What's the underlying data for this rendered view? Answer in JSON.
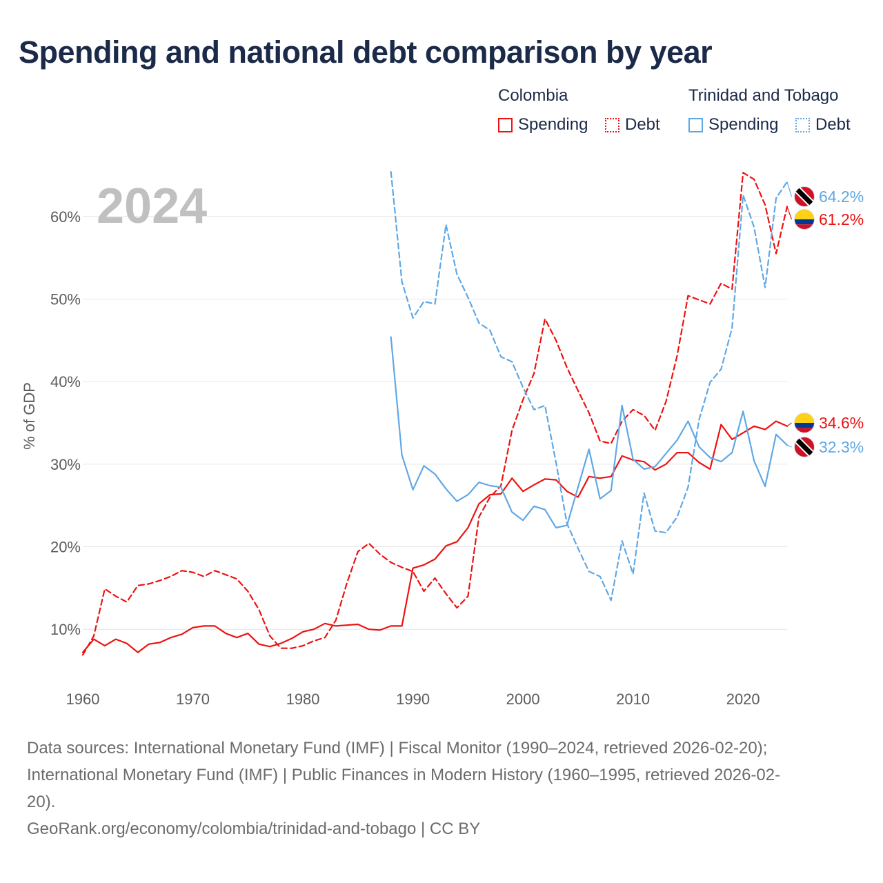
{
  "title": "Spending and national debt comparison by year",
  "colors": {
    "colombia": "#ee1111",
    "trinidad": "#5fa8e6",
    "grid": "#e6e6e6",
    "year_watermark": "#c0c0c0"
  },
  "legend": {
    "groups": [
      {
        "country": "Colombia",
        "spending_label": "Spending",
        "debt_label": "Debt"
      },
      {
        "country": "Trinidad and Tobago",
        "spending_label": "Spending",
        "debt_label": "Debt"
      }
    ]
  },
  "chart_data": {
    "type": "line",
    "current_year": "2024",
    "ylabel": "% of GDP",
    "xlim": [
      1960,
      2024
    ],
    "ylim": [
      3.5,
      67
    ],
    "x_ticks": [
      1960,
      1970,
      1980,
      1990,
      2000,
      2010,
      2020
    ],
    "x_tick_labels": [
      "1960",
      "1970",
      "1980",
      "1990",
      "2000",
      "2010",
      "2020"
    ],
    "y_ticks": [
      10,
      20,
      30,
      40,
      50,
      60
    ],
    "y_tick_labels": [
      "10%",
      "20%",
      "30%",
      "40%",
      "50%",
      "60%"
    ],
    "series": [
      {
        "name": "Colombia Spending",
        "country": "Colombia",
        "kind": "spending",
        "style": "solid",
        "color": "#ee1111",
        "end_label": "34.6%",
        "x": [
          1960,
          1961,
          1962,
          1963,
          1964,
          1965,
          1966,
          1967,
          1968,
          1969,
          1970,
          1971,
          1972,
          1973,
          1974,
          1975,
          1976,
          1977,
          1978,
          1979,
          1980,
          1981,
          1982,
          1983,
          1984,
          1985,
          1986,
          1987,
          1988,
          1989,
          1990,
          1991,
          1992,
          1993,
          1994,
          1995,
          1996,
          1997,
          1998,
          1999,
          2000,
          2001,
          2002,
          2003,
          2004,
          2005,
          2006,
          2007,
          2008,
          2009,
          2010,
          2011,
          2012,
          2013,
          2014,
          2015,
          2016,
          2017,
          2018,
          2019,
          2020,
          2021,
          2022,
          2023,
          2024
        ],
        "y": [
          7.2,
          8.8,
          8.0,
          8.8,
          8.3,
          7.2,
          8.2,
          8.4,
          9.0,
          9.4,
          10.2,
          10.4,
          10.4,
          9.5,
          9.0,
          9.5,
          8.2,
          7.9,
          8.3,
          8.9,
          9.7,
          10.0,
          10.7,
          10.4,
          10.5,
          10.6,
          10.0,
          9.9,
          10.4,
          10.4,
          17.4,
          17.8,
          18.5,
          20.1,
          20.6,
          22.3,
          25.2,
          26.3,
          26.4,
          28.3,
          26.7,
          27.5,
          28.2,
          28.1,
          26.7,
          26.0,
          28.5,
          28.3,
          28.5,
          31.0,
          30.5,
          30.3,
          29.3,
          30.0,
          31.4,
          31.4,
          30.2,
          29.4,
          34.8,
          33.0,
          33.8,
          34.6,
          34.2,
          35.2,
          34.6
        ]
      },
      {
        "name": "Colombia Debt",
        "country": "Colombia",
        "kind": "debt",
        "style": "dashed",
        "color": "#ee1111",
        "end_label": "61.2%",
        "x": [
          1960,
          1961,
          1962,
          1963,
          1964,
          1965,
          1966,
          1967,
          1968,
          1969,
          1970,
          1971,
          1972,
          1973,
          1974,
          1975,
          1976,
          1977,
          1978,
          1979,
          1980,
          1981,
          1982,
          1983,
          1984,
          1985,
          1986,
          1987,
          1988,
          1989,
          1990,
          1991,
          1992,
          1993,
          1994,
          1995,
          1996,
          1997,
          1998,
          1999,
          2000,
          2001,
          2002,
          2003,
          2004,
          2005,
          2006,
          2007,
          2008,
          2009,
          2010,
          2011,
          2012,
          2013,
          2014,
          2015,
          2016,
          2017,
          2018,
          2019,
          2020,
          2021,
          2022,
          2023,
          2024
        ],
        "y": [
          6.9,
          9.2,
          14.9,
          14.0,
          13.3,
          15.3,
          15.5,
          15.9,
          16.4,
          17.1,
          16.9,
          16.4,
          17.1,
          16.6,
          16.1,
          14.6,
          12.4,
          9.2,
          7.7,
          7.7,
          8.0,
          8.6,
          9.0,
          11.1,
          15.6,
          19.4,
          20.4,
          19.1,
          18.1,
          17.5,
          17.0,
          14.6,
          16.2,
          14.3,
          12.6,
          14.0,
          23.6,
          26.0,
          27.4,
          34.1,
          37.8,
          41.0,
          47.6,
          45.0,
          41.7,
          38.9,
          36.2,
          32.8,
          32.5,
          35.2,
          36.6,
          35.9,
          34.1,
          37.6,
          43.1,
          50.4,
          49.9,
          49.4,
          51.9,
          51.2,
          65.3,
          64.5,
          61.4,
          55.5,
          61.2
        ]
      },
      {
        "name": "Trinidad and Tobago Spending",
        "country": "Trinidad and Tobago",
        "kind": "spending",
        "style": "solid",
        "color": "#5fa8e6",
        "end_label": "32.3%",
        "x": [
          1988,
          1989,
          1990,
          1991,
          1992,
          1993,
          1994,
          1995,
          1996,
          1997,
          1998,
          1999,
          2000,
          2001,
          2002,
          2003,
          2004,
          2005,
          2006,
          2007,
          2008,
          2009,
          2010,
          2011,
          2012,
          2013,
          2014,
          2015,
          2016,
          2017,
          2018,
          2019,
          2020,
          2021,
          2022,
          2023,
          2024
        ],
        "y": [
          45.4,
          31.1,
          26.9,
          29.8,
          28.8,
          27.0,
          25.5,
          26.3,
          27.8,
          27.4,
          27.2,
          24.2,
          23.2,
          24.9,
          24.5,
          22.3,
          22.6,
          27.2,
          31.8,
          25.8,
          26.8,
          37.1,
          30.6,
          29.4,
          29.7,
          31.3,
          32.9,
          35.2,
          32.1,
          30.8,
          30.3,
          31.4,
          36.4,
          30.4,
          27.3,
          33.6,
          32.3
        ]
      },
      {
        "name": "Trinidad and Tobago Debt",
        "country": "Trinidad and Tobago",
        "kind": "debt",
        "style": "dashed",
        "color": "#5fa8e6",
        "end_label": "64.2%",
        "x": [
          1988,
          1989,
          1990,
          1991,
          1992,
          1993,
          1994,
          1995,
          1996,
          1997,
          1998,
          1999,
          2000,
          2001,
          2002,
          2003,
          2004,
          2005,
          2006,
          2007,
          2008,
          2009,
          2010,
          2011,
          2012,
          2013,
          2014,
          2015,
          2016,
          2017,
          2018,
          2019,
          2020,
          2021,
          2022,
          2023,
          2024
        ],
        "y": [
          65.4,
          52.1,
          47.7,
          49.7,
          49.4,
          59.0,
          53.0,
          50.2,
          47.1,
          46.2,
          43.0,
          42.4,
          39.3,
          36.6,
          37.1,
          30.2,
          22.8,
          19.8,
          17.0,
          16.4,
          13.5,
          20.7,
          16.7,
          26.5,
          21.9,
          21.7,
          23.6,
          27.2,
          35.4,
          39.9,
          41.5,
          46.5,
          62.6,
          58.7,
          51.4,
          62.2,
          64.2
        ]
      }
    ]
  },
  "footer": {
    "sources_line1": "Data sources: International Monetary Fund (IMF) | Fiscal Monitor (1990–2024, retrieved 2026-02-20);",
    "sources_line2": "International Monetary Fund (IMF) | Public Finances in Modern History (1960–1995, retrieved 2026-02-",
    "sources_line3": "20).",
    "credit": "GeoRank.org/economy/colombia/trinidad-and-tobago | CC BY"
  }
}
